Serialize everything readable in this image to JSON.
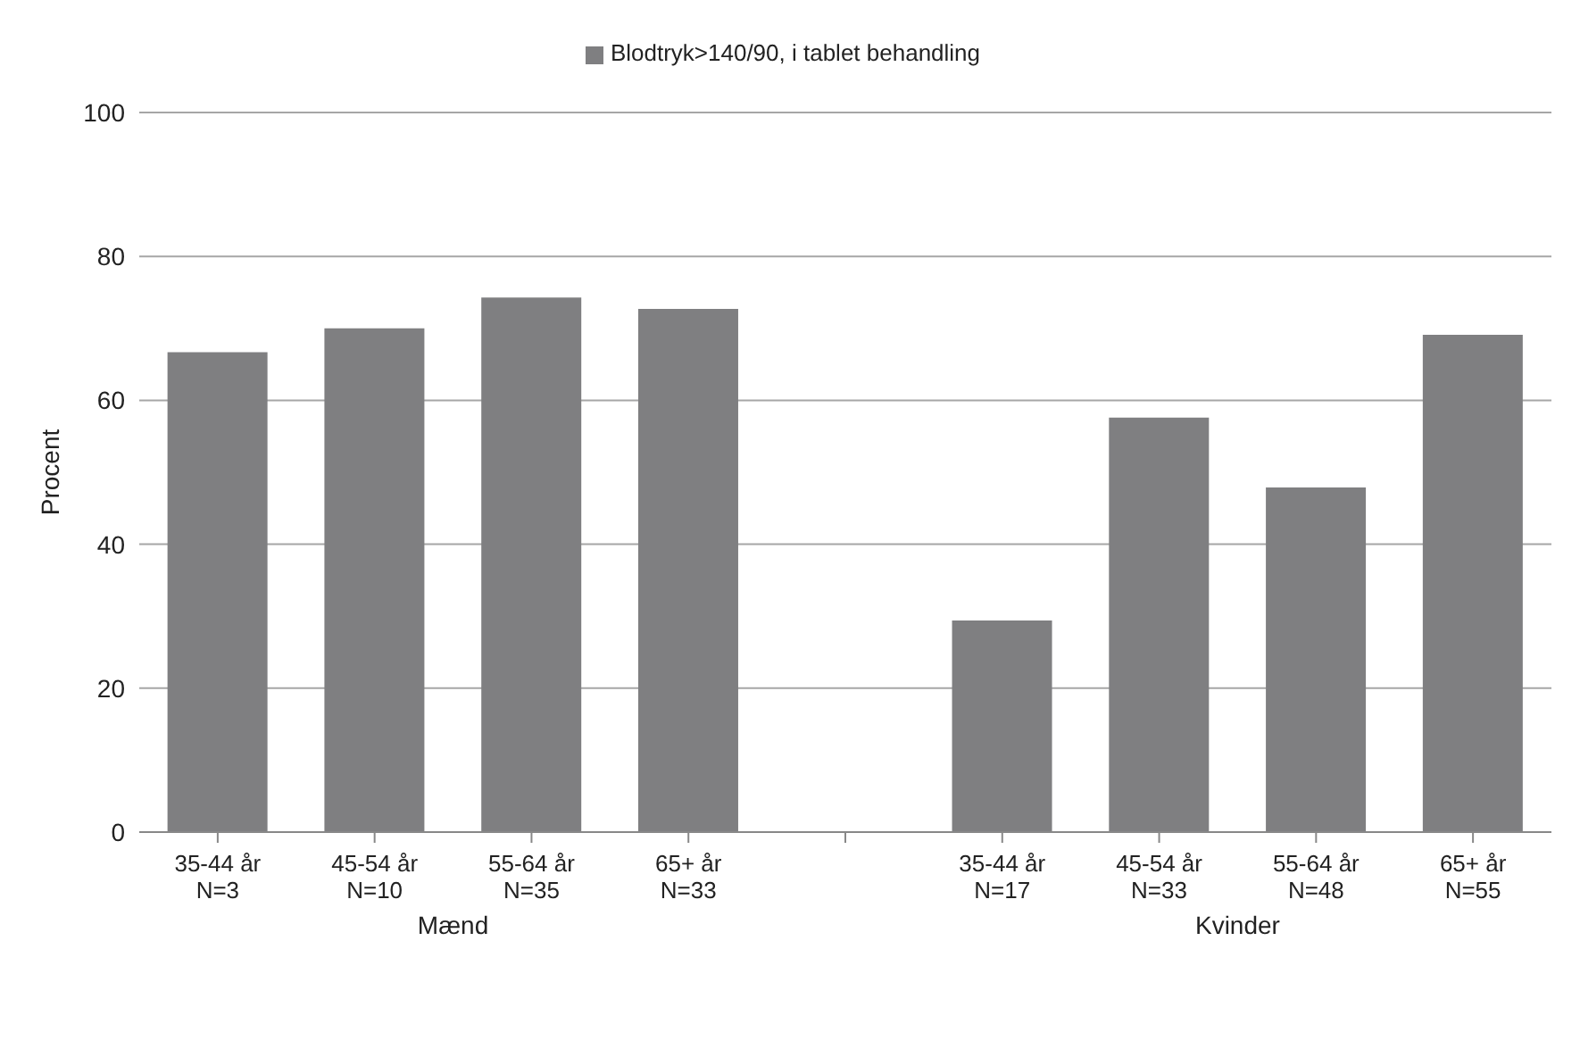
{
  "chart_data": {
    "type": "bar",
    "ylabel": "Procent",
    "categories": [
      "35-44 år\nN=3",
      "45-54 år\nN=10",
      "55-64 år\nN=35",
      "65+ år\nN=33",
      null,
      "35-44 år\nN=17",
      "45-54 år\nN=33",
      "55-64 år\nN=48",
      "65+ år\nN=55"
    ],
    "series": [
      {
        "name": "Blodtryk>140/90, i tablet behandling",
        "color": "#7f7f81",
        "values": [
          66.7,
          70.0,
          74.3,
          72.7,
          null,
          29.4,
          57.6,
          47.9,
          69.1
        ]
      }
    ],
    "ylim": [
      0,
      100
    ],
    "yticks": [
      0,
      20,
      40,
      60,
      80,
      100
    ],
    "grid": "y",
    "legend": "top",
    "annotations": [
      "Mænd",
      "Kvinder"
    ]
  }
}
